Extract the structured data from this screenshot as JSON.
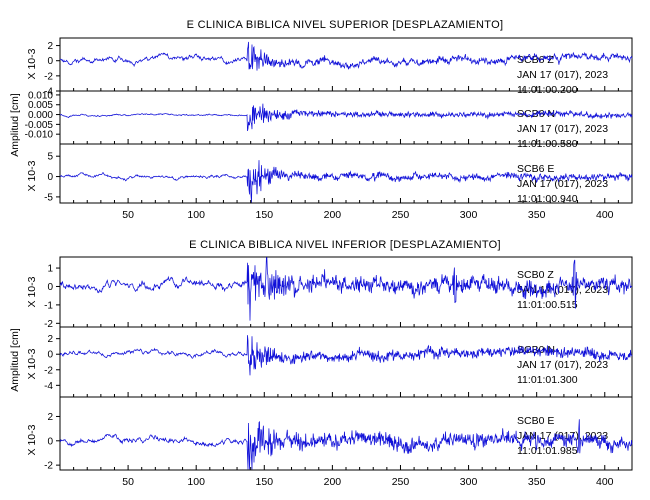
{
  "chart_data": [
    {
      "type": "line",
      "title": "E CLINICA BIBLICA NIVEL SUPERIOR [DESPLAZAMIENTO]",
      "ylabel": "Amplitud [cm]",
      "xlim": [
        0,
        420
      ],
      "xticks": [
        "50",
        "100",
        "150",
        "200",
        "250",
        "300",
        "350",
        "400"
      ],
      "series": [
        {
          "name": "SCB6 Z",
          "station_label": "SCB6   Z",
          "date_label": "JAN 17 (017), 2023",
          "time_label": "11:01:00.200",
          "scale_label": "X 10-3",
          "ylim": [
            -4,
            3
          ],
          "yticks": [
            "2",
            "0",
            "-2",
            "-4"
          ],
          "noise": 0.7,
          "event_amp": 3.3,
          "event_decay": 10,
          "coda": 0.12,
          "event_at": 139,
          "spikes": [],
          "drift": 0.2,
          "color": "#1010d8"
        },
        {
          "name": "SCB6 N",
          "station_label": "SCB6   N",
          "date_label": "JAN 17 (017), 2023",
          "time_label": "11:01:00.580",
          "scale_label": "",
          "ylim": [
            -0.015,
            0.012
          ],
          "yticks": [
            "0.010",
            "0.005",
            "0.000",
            "-0.005",
            "-0.010"
          ],
          "noise": 0.0009,
          "event_amp": 0.0105,
          "event_decay": 12,
          "coda": 0.15,
          "event_at": 139,
          "spikes": [],
          "drift": 0,
          "color": "#1010d8"
        },
        {
          "name": "SCB6 E",
          "station_label": "SCB6   E",
          "date_label": "JAN 17 (017), 2023",
          "time_label": "11:01:00.940",
          "scale_label": "X 10-3",
          "ylim": [
            -6.5,
            8
          ],
          "yticks": [
            "5",
            "0",
            "-5"
          ],
          "noise": 0.8,
          "event_amp": 6.2,
          "event_decay": 12,
          "coda": 0.14,
          "event_at": 139,
          "spikes": [],
          "drift": 0,
          "color": "#1010d8"
        }
      ]
    },
    {
      "type": "line",
      "title": "E CLINICA BIBLICA NIVEL INFERIOR [DESPLAZAMIENTO]",
      "ylabel": "Amplitud [cm]",
      "xlim": [
        0,
        420
      ],
      "xticks": [
        "50",
        "100",
        "150",
        "200",
        "250",
        "300",
        "350",
        "400"
      ],
      "series": [
        {
          "name": "SCB0 Z",
          "station_label": "SCB0   Z",
          "date_label": "JAN 17 (017), 2023",
          "time_label": "11:01:00.515",
          "scale_label": "X 10-3",
          "ylim": [
            -2.2,
            1.6
          ],
          "yticks": [
            "1",
            "0",
            "-1",
            "-2"
          ],
          "noise": 0.45,
          "event_amp": 1.9,
          "event_decay": 14,
          "coda": 0.25,
          "event_at": 139,
          "spikes": [
            [
              152,
              1.4
            ],
            [
              290,
              1.0
            ],
            [
              378,
              1.3
            ]
          ],
          "drift": 0,
          "color": "#1010d8"
        },
        {
          "name": "SCB0 N",
          "station_label": "SCB0   N",
          "date_label": "JAN 17 (017), 2023",
          "time_label": "11:01:01.300",
          "scale_label": "X 10-3",
          "ylim": [
            -5.5,
            3.5
          ],
          "yticks": [
            "2",
            "0",
            "-2",
            "-4"
          ],
          "noise": 0.6,
          "event_amp": 4.2,
          "event_decay": 9,
          "coda": 0.18,
          "event_at": 139,
          "spikes": [],
          "drift": 0.4,
          "color": "#1010d8"
        },
        {
          "name": "SCB0 E",
          "station_label": "SCB0   E",
          "date_label": "JAN 17 (017), 2023",
          "time_label": "11:01:01.985",
          "scale_label": "X 10-3",
          "ylim": [
            -2.4,
            3.6
          ],
          "yticks": [
            "2",
            "0",
            "-2"
          ],
          "noise": 0.5,
          "event_amp": 2.4,
          "event_decay": 12,
          "coda": 0.3,
          "event_at": 139,
          "spikes": [
            [
              381,
              1.3
            ]
          ],
          "drift": 0,
          "color": "#1010d8"
        }
      ]
    }
  ]
}
